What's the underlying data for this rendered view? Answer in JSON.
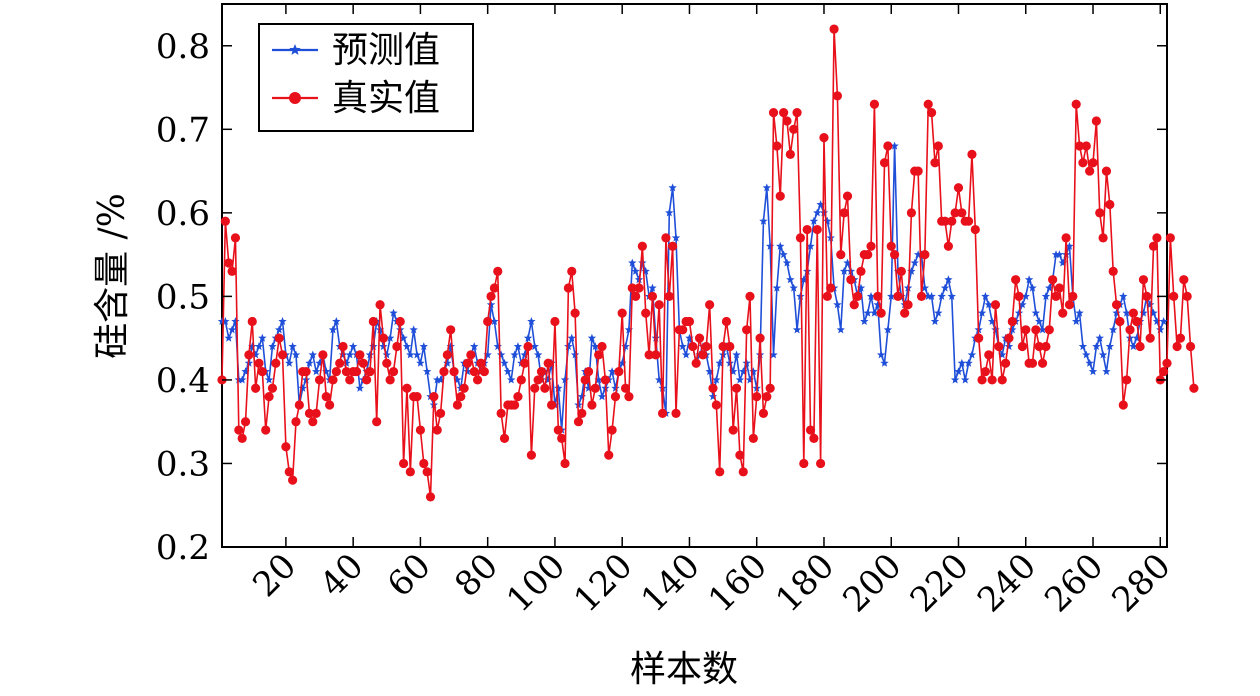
{
  "chart_data": {
    "type": "line",
    "title": "",
    "xlabel": "样本数",
    "ylabel": "硅含量 /%",
    "xlim": [
      1,
      282
    ],
    "ylim": [
      0.2,
      0.85
    ],
    "x_ticks": [
      20,
      40,
      60,
      80,
      100,
      120,
      140,
      160,
      180,
      200,
      220,
      240,
      260,
      280
    ],
    "x_tick_labels": [
      "20",
      "40",
      "60",
      "80",
      "100",
      "120",
      "140",
      "160",
      "180",
      "200",
      "220",
      "240",
      "260",
      "280"
    ],
    "y_ticks": [
      0.2,
      0.3,
      0.4,
      0.5,
      0.6,
      0.7,
      0.8
    ],
    "y_tick_labels": [
      "0.2",
      "0.3",
      "0.4",
      "0.5",
      "0.6",
      "0.7",
      "0.8"
    ],
    "grid": false,
    "legend_position": "top-left",
    "series": [
      {
        "name": "预测值",
        "color": "#1f4fd8",
        "marker": "star",
        "values": [
          0.47,
          0.47,
          0.45,
          0.46,
          0.47,
          0.4,
          0.4,
          0.41,
          0.42,
          0.44,
          0.43,
          0.44,
          0.45,
          0.41,
          0.4,
          0.44,
          0.45,
          0.46,
          0.47,
          0.43,
          0.42,
          0.44,
          0.43,
          0.37,
          0.39,
          0.4,
          0.42,
          0.43,
          0.41,
          0.42,
          0.43,
          0.41,
          0.4,
          0.46,
          0.47,
          0.44,
          0.43,
          0.42,
          0.43,
          0.44,
          0.43,
          0.39,
          0.4,
          0.41,
          0.43,
          0.44,
          0.47,
          0.46,
          0.44,
          0.43,
          0.45,
          0.48,
          0.47,
          0.46,
          0.45,
          0.44,
          0.43,
          0.46,
          0.43,
          0.42,
          0.44,
          0.41,
          0.38,
          0.37,
          0.4,
          0.4,
          0.41,
          0.42,
          0.44,
          0.41,
          0.4,
          0.39,
          0.42,
          0.41,
          0.43,
          0.44,
          0.42,
          0.41,
          0.42,
          0.43,
          0.49,
          0.47,
          0.44,
          0.43,
          0.42,
          0.41,
          0.4,
          0.43,
          0.44,
          0.42,
          0.43,
          0.45,
          0.47,
          0.44,
          0.43,
          0.4,
          0.41,
          0.4,
          0.42,
          0.37,
          0.39,
          0.34,
          0.4,
          0.44,
          0.45,
          0.43,
          0.37,
          0.38,
          0.41,
          0.39,
          0.45,
          0.44,
          0.4,
          0.38,
          0.39,
          0.4,
          0.41,
          0.39,
          0.41,
          0.42,
          0.44,
          0.46,
          0.54,
          0.53,
          0.52,
          0.54,
          0.53,
          0.5,
          0.51,
          0.45,
          0.4,
          0.39,
          0.36,
          0.6,
          0.63,
          0.57,
          0.46,
          0.44,
          0.43,
          0.45,
          0.44,
          0.42,
          0.43,
          0.44,
          0.43,
          0.41,
          0.38,
          0.4,
          0.42,
          0.43,
          0.44,
          0.42,
          0.41,
          0.43,
          0.4,
          0.41,
          0.42,
          0.4,
          0.41,
          0.39,
          0.43,
          0.59,
          0.63,
          0.56,
          0.43,
          0.51,
          0.56,
          0.55,
          0.54,
          0.52,
          0.51,
          0.46,
          0.5,
          0.52,
          0.53,
          0.56,
          0.59,
          0.6,
          0.61,
          0.6,
          0.59,
          0.57,
          0.51,
          0.49,
          0.46,
          0.53,
          0.54,
          0.53,
          0.52,
          0.5,
          0.51,
          0.47,
          0.48,
          0.5,
          0.48,
          0.49,
          0.43,
          0.42,
          0.46,
          0.5,
          0.68,
          0.53,
          0.5,
          0.49,
          0.51,
          0.53,
          0.54,
          0.55,
          0.55,
          0.51,
          0.5,
          0.5,
          0.47,
          0.48,
          0.5,
          0.51,
          0.52,
          0.5,
          0.4,
          0.41,
          0.42,
          0.4,
          0.42,
          0.43,
          0.45,
          0.46,
          0.48,
          0.5,
          0.49,
          0.47,
          0.46,
          0.44,
          0.43,
          0.45,
          0.44,
          0.46,
          0.47,
          0.48,
          0.49,
          0.5,
          0.52,
          0.51,
          0.48,
          0.47,
          0.46,
          0.5,
          0.51,
          0.52,
          0.55,
          0.55,
          0.54,
          0.55,
          0.56,
          0.5,
          0.47,
          0.48,
          0.44,
          0.43,
          0.42,
          0.41,
          0.44,
          0.45,
          0.43,
          0.41,
          0.44,
          0.46,
          0.48,
          0.49,
          0.5,
          0.48,
          0.45,
          0.44,
          0.45,
          0.47,
          0.48,
          0.5,
          0.49,
          0.48,
          0.47,
          0.46,
          0.47
        ]
      },
      {
        "name": "真实值",
        "color": "#e8101a",
        "marker": "circle",
        "values": [
          0.4,
          0.59,
          0.54,
          0.53,
          0.57,
          0.34,
          0.33,
          0.35,
          0.43,
          0.47,
          0.39,
          0.42,
          0.41,
          0.34,
          0.38,
          0.39,
          0.42,
          0.45,
          0.43,
          0.32,
          0.29,
          0.28,
          0.35,
          0.37,
          0.41,
          0.41,
          0.36,
          0.35,
          0.36,
          0.4,
          0.43,
          0.38,
          0.37,
          0.4,
          0.41,
          0.42,
          0.44,
          0.41,
          0.4,
          0.41,
          0.41,
          0.43,
          0.42,
          0.4,
          0.41,
          0.47,
          0.35,
          0.49,
          0.45,
          0.42,
          0.4,
          0.41,
          0.44,
          0.47,
          0.3,
          0.39,
          0.29,
          0.38,
          0.38,
          0.34,
          0.3,
          0.29,
          0.26,
          0.38,
          0.34,
          0.36,
          0.41,
          0.43,
          0.46,
          0.41,
          0.37,
          0.38,
          0.39,
          0.42,
          0.43,
          0.41,
          0.4,
          0.42,
          0.41,
          0.47,
          0.5,
          0.51,
          0.53,
          0.36,
          0.33,
          0.37,
          0.37,
          0.37,
          0.38,
          0.4,
          0.42,
          0.44,
          0.31,
          0.39,
          0.4,
          0.41,
          0.39,
          0.42,
          0.37,
          0.47,
          0.34,
          0.33,
          0.3,
          0.51,
          0.53,
          0.48,
          0.35,
          0.36,
          0.4,
          0.41,
          0.37,
          0.39,
          0.43,
          0.44,
          0.4,
          0.31,
          0.34,
          0.38,
          0.41,
          0.48,
          0.39,
          0.38,
          0.51,
          0.5,
          0.51,
          0.56,
          0.48,
          0.43,
          0.5,
          0.43,
          0.49,
          0.36,
          0.57,
          0.5,
          0.56,
          0.36,
          0.46,
          0.46,
          0.47,
          0.47,
          0.44,
          0.42,
          0.45,
          0.43,
          0.44,
          0.49,
          0.39,
          0.37,
          0.29,
          0.44,
          0.47,
          0.44,
          0.34,
          0.39,
          0.31,
          0.29,
          0.46,
          0.5,
          0.33,
          0.38,
          0.45,
          0.36,
          0.38,
          0.39,
          0.72,
          0.68,
          0.62,
          0.72,
          0.71,
          0.67,
          0.7,
          0.72,
          0.57,
          0.3,
          0.58,
          0.34,
          0.33,
          0.58,
          0.3,
          0.69,
          0.5,
          0.51,
          0.82,
          0.74,
          0.55,
          0.6,
          0.62,
          0.52,
          0.49,
          0.5,
          0.53,
          0.55,
          0.55,
          0.56,
          0.73,
          0.5,
          0.48,
          0.66,
          0.68,
          0.56,
          0.55,
          0.5,
          0.53,
          0.48,
          0.49,
          0.6,
          0.65,
          0.65,
          0.5,
          0.55,
          0.73,
          0.72,
          0.66,
          0.68,
          0.59,
          0.59,
          0.56,
          0.59,
          0.6,
          0.63,
          0.6,
          0.59,
          0.59,
          0.67,
          0.58,
          0.45,
          0.4,
          0.41,
          0.43,
          0.4,
          0.49,
          0.44,
          0.4,
          0.42,
          0.45,
          0.47,
          0.52,
          0.5,
          0.44,
          0.46,
          0.42,
          0.42,
          0.46,
          0.44,
          0.42,
          0.44,
          0.46,
          0.52,
          0.5,
          0.51,
          0.48,
          0.57,
          0.49,
          0.5,
          0.73,
          0.68,
          0.66,
          0.68,
          0.65,
          0.66,
          0.71,
          0.6,
          0.57,
          0.65,
          0.61,
          0.53,
          0.49,
          0.47,
          0.37,
          0.4,
          0.46,
          0.48,
          0.47,
          0.44,
          0.52,
          0.5,
          0.45,
          0.56,
          0.57,
          0.4,
          0.41,
          0.42,
          0.57,
          0.5,
          0.44,
          0.45,
          0.52,
          0.5,
          0.44,
          0.39
        ]
      }
    ]
  }
}
